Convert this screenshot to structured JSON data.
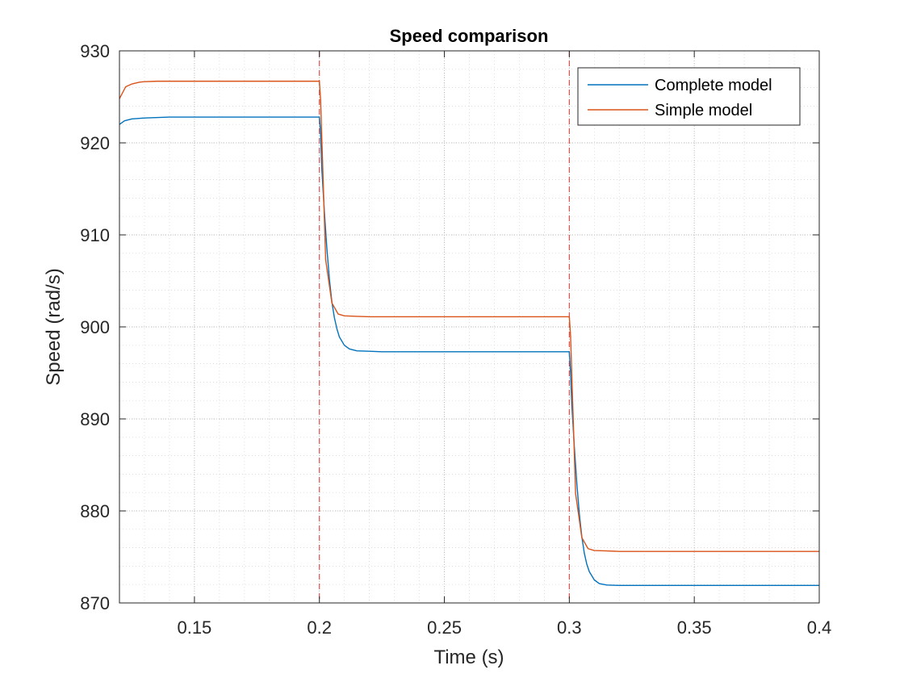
{
  "chart_data": {
    "type": "line",
    "title": "Speed comparison",
    "xlabel": "Time (s)",
    "ylabel": "Speed (rad/s)",
    "xlim": [
      0.12,
      0.4
    ],
    "ylim": [
      870,
      930
    ],
    "xticks": [
      0.15,
      0.2,
      0.25,
      0.3,
      0.35,
      0.4
    ],
    "xtick_labels": [
      "0.15",
      "0.2",
      "0.25",
      "0.3",
      "0.35",
      "0.4"
    ],
    "yticks": [
      870,
      880,
      890,
      900,
      910,
      920,
      930
    ],
    "ytick_labels": [
      "870",
      "880",
      "890",
      "900",
      "910",
      "920",
      "930"
    ],
    "grid": true,
    "minor_grid": true,
    "legend_position": "top-right",
    "vlines": [
      {
        "x": 0.2,
        "style": "dashed",
        "color": "#e8423f"
      },
      {
        "x": 0.3,
        "style": "dashed",
        "color": "#e8423f"
      }
    ],
    "series": [
      {
        "name": "Complete model",
        "color": "#0072bd",
        "x": [
          0.12,
          0.122,
          0.125,
          0.13,
          0.14,
          0.15,
          0.2,
          0.2005,
          0.201,
          0.202,
          0.203,
          0.204,
          0.205,
          0.206,
          0.207,
          0.208,
          0.21,
          0.212,
          0.215,
          0.22,
          0.225,
          0.23,
          0.3,
          0.3005,
          0.301,
          0.302,
          0.303,
          0.304,
          0.305,
          0.306,
          0.307,
          0.308,
          0.31,
          0.312,
          0.315,
          0.32,
          0.325,
          0.33,
          0.4
        ],
        "y": [
          922.0,
          922.4,
          922.6,
          922.7,
          922.8,
          922.8,
          922.8,
          921.0,
          917.0,
          912.5,
          908.5,
          905.2,
          902.7,
          901.0,
          899.8,
          898.9,
          898.0,
          897.6,
          897.4,
          897.35,
          897.3,
          897.3,
          897.3,
          895.0,
          891.5,
          887.0,
          883.0,
          879.7,
          877.2,
          875.4,
          874.2,
          873.4,
          872.5,
          872.1,
          871.95,
          871.9,
          871.9,
          871.9,
          871.9
        ]
      },
      {
        "name": "Simple model",
        "color": "#d95319",
        "x": [
          0.12,
          0.1225,
          0.125,
          0.128,
          0.13,
          0.135,
          0.2,
          0.2005,
          0.2025,
          0.205,
          0.2075,
          0.21,
          0.215,
          0.22,
          0.225,
          0.3,
          0.3005,
          0.3025,
          0.305,
          0.3075,
          0.31,
          0.315,
          0.32,
          0.325,
          0.4
        ],
        "y": [
          924.8,
          926.1,
          926.4,
          926.6,
          926.65,
          926.7,
          926.7,
          924.6,
          907.3,
          902.6,
          901.4,
          901.2,
          901.15,
          901.1,
          901.1,
          901.1,
          899.0,
          881.9,
          877.1,
          875.9,
          875.7,
          875.65,
          875.6,
          875.6,
          875.6
        ]
      }
    ]
  }
}
